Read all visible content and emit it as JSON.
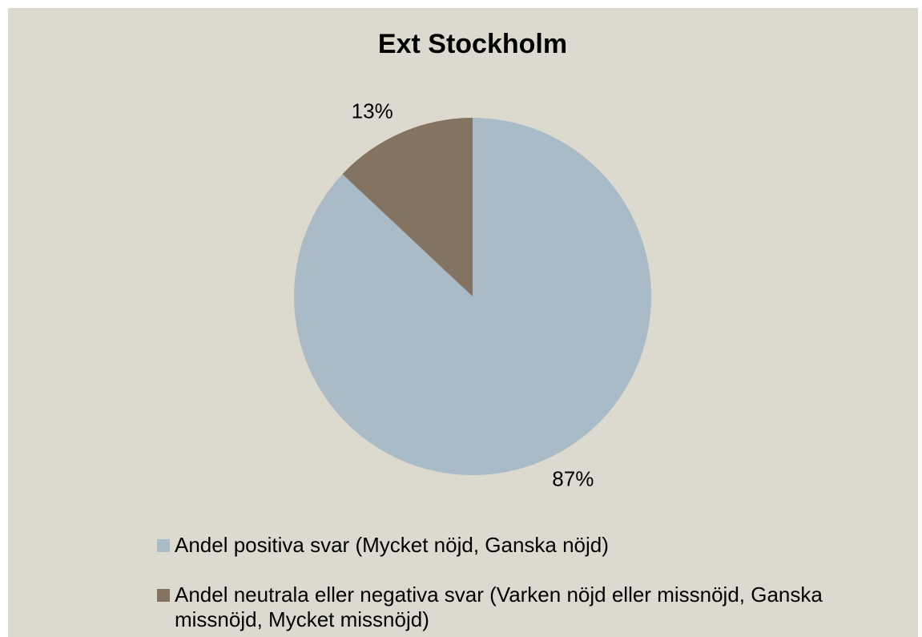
{
  "chart_data": {
    "type": "pie",
    "title": "Ext Stockholm",
    "categories": [
      "Andel positiva svar (Mycket nöjd, Ganska nöjd)",
      "Andel neutrala eller negativa svar (Varken nöjd eller missnöjd, Ganska missnöjd, Mycket missnöjd)"
    ],
    "values": [
      87,
      13
    ],
    "value_labels": [
      "87%",
      "13%"
    ],
    "colors": [
      "#a8bbc6",
      "#857362"
    ],
    "legend": "bottom"
  }
}
